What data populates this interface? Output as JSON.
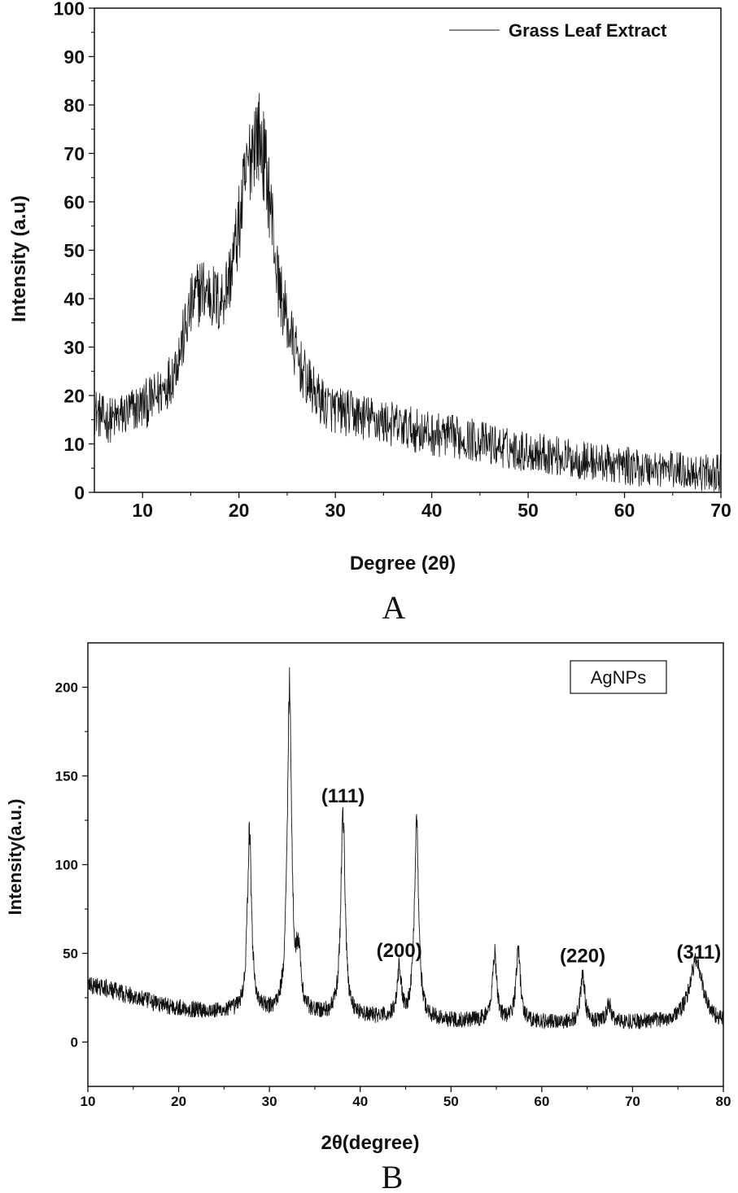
{
  "panels": {
    "A": {
      "letter": "A"
    },
    "B": {
      "letter": "B"
    }
  },
  "chart_data": [
    {
      "type": "line",
      "panel": "A",
      "title": "",
      "xlabel": "Degree (2θ)",
      "ylabel": "Intensity (a.u)",
      "xlim": [
        5,
        70
      ],
      "ylim": [
        0,
        100
      ],
      "xticks": [
        10,
        20,
        30,
        40,
        50,
        60,
        70
      ],
      "yticks": [
        0,
        10,
        20,
        30,
        40,
        50,
        60,
        70,
        80,
        90,
        100
      ],
      "legend": {
        "placement": "top-right",
        "entries": [
          "Grass Leaf Extract"
        ]
      },
      "grid": false,
      "series": [
        {
          "name": "Grass Leaf Extract",
          "color": "#111111",
          "x": [
            5,
            6,
            7,
            8,
            9,
            10,
            11,
            12,
            13,
            14,
            15,
            16,
            17,
            18,
            19,
            20,
            20.5,
            21,
            21.5,
            22,
            22.5,
            23,
            23.5,
            24,
            25,
            26,
            27,
            28,
            29,
            30,
            32,
            34,
            36,
            38,
            40,
            42,
            44,
            46,
            48,
            50,
            52,
            54,
            56,
            58,
            60,
            62,
            64,
            66,
            68,
            70
          ],
          "y": [
            17,
            15,
            15,
            16,
            17,
            18,
            19,
            21,
            24,
            30,
            38,
            42,
            41,
            39,
            44,
            55,
            62,
            68,
            73,
            74,
            70,
            64,
            55,
            44,
            35,
            28,
            23,
            20,
            18,
            17,
            16,
            15,
            14,
            13,
            12,
            11.5,
            11,
            10,
            9,
            8.5,
            8,
            7,
            6.5,
            6,
            5.5,
            5,
            5,
            4.5,
            4,
            4
          ]
        }
      ]
    },
    {
      "type": "line",
      "panel": "B",
      "title": "",
      "xlabel": "2θ(degree)",
      "ylabel": "Intensity(a.u.)",
      "xlim": [
        10,
        80
      ],
      "ylim": [
        -25,
        225
      ],
      "xticks": [
        10,
        20,
        30,
        40,
        50,
        60,
        70,
        80
      ],
      "yticks": [
        0,
        50,
        100,
        150,
        200
      ],
      "legend": {
        "placement": "top-right",
        "entries": [
          "AgNPs"
        ]
      },
      "grid": false,
      "annotations": [
        {
          "text": "(111)",
          "x": 38.1,
          "y": 135
        },
        {
          "text": "(200)",
          "x": 44.3,
          "y": 48
        },
        {
          "text": "(220)",
          "x": 64.5,
          "y": 45
        },
        {
          "text": "(311)",
          "x": 77.3,
          "y": 47
        }
      ],
      "series": [
        {
          "name": "AgNPs",
          "color": "#111111",
          "baseline": [
            [
              10,
              32
            ],
            [
              12,
              30
            ],
            [
              14,
              27
            ],
            [
              16,
              24
            ],
            [
              18,
              21
            ],
            [
              20,
              19
            ],
            [
              22,
              18
            ],
            [
              24,
              17
            ],
            [
              26,
              17
            ],
            [
              30,
              16
            ],
            [
              35,
              15
            ],
            [
              40,
              14
            ],
            [
              45,
              13
            ],
            [
              50,
              12
            ],
            [
              55,
              12
            ],
            [
              60,
              11
            ],
            [
              65,
              11
            ],
            [
              70,
              11
            ],
            [
              75,
              11
            ],
            [
              80,
              10
            ]
          ],
          "peaks": [
            {
              "x": 27.8,
              "height": 100
            },
            {
              "x": 32.2,
              "height": 185
            },
            {
              "x": 33.2,
              "height": 30
            },
            {
              "x": 38.1,
              "height": 115
            },
            {
              "x": 44.3,
              "height": 27
            },
            {
              "x": 46.2,
              "height": 113
            },
            {
              "x": 54.8,
              "height": 38
            },
            {
              "x": 57.4,
              "height": 41
            },
            {
              "x": 64.5,
              "height": 27
            },
            {
              "x": 67.4,
              "height": 10
            },
            {
              "x": 77.0,
              "height": 35
            }
          ]
        }
      ]
    }
  ]
}
